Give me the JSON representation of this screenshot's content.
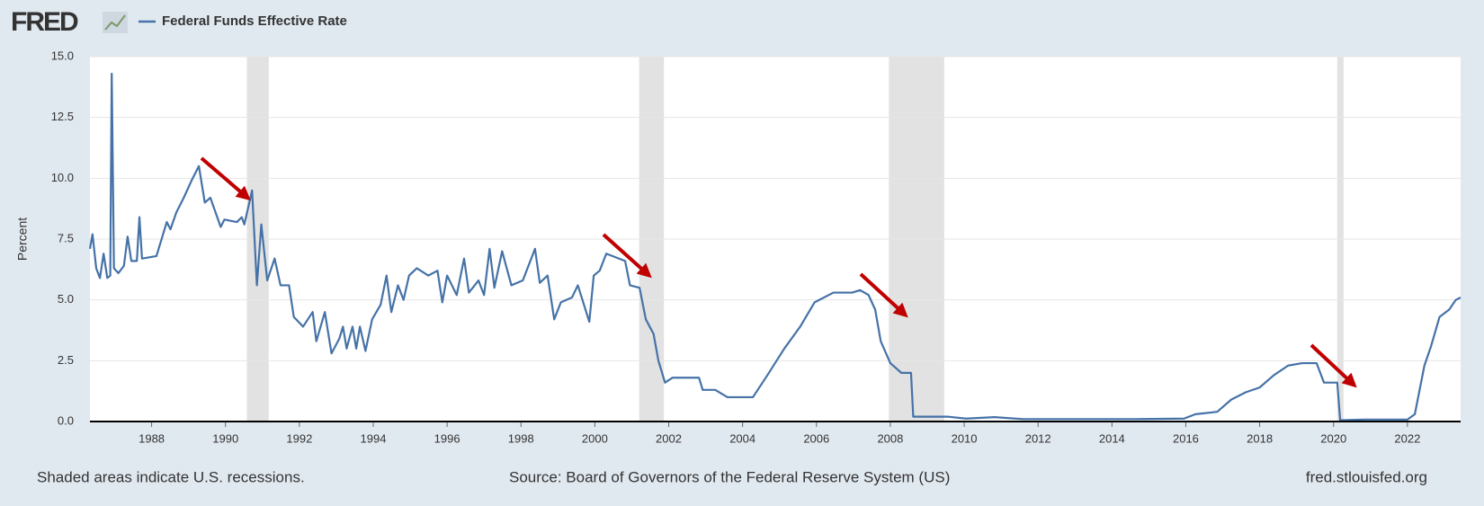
{
  "chart_data": {
    "type": "line",
    "logo": "FRED",
    "y_label": "Percent",
    "recession_note": "Shaded areas indicate U.S. recessions.",
    "source": "Source: Board of Governors of the Federal Reserve System (US)",
    "site": "fred.stlouisfed.org",
    "xlim": [
      1986.33,
      2023.44
    ],
    "ylim": [
      0,
      15
    ],
    "xticks": [
      1988,
      1990,
      1992,
      1994,
      1996,
      1998,
      2000,
      2002,
      2004,
      2006,
      2008,
      2010,
      2012,
      2014,
      2016,
      2018,
      2020,
      2022
    ],
    "yticks": [
      {
        "value": 0,
        "label": "0.0"
      },
      {
        "value": 2.5,
        "label": "2.5"
      },
      {
        "value": 5,
        "label": "5.0"
      },
      {
        "value": 7.5,
        "label": "7.5"
      },
      {
        "value": 10,
        "label": "10.0"
      },
      {
        "value": 12.5,
        "label": "12.5"
      },
      {
        "value": 15,
        "label": "15.0"
      }
    ],
    "grid": true,
    "recessions": [
      [
        1990.58,
        1991.17
      ],
      [
        2001.2,
        2001.87
      ],
      [
        2007.96,
        2009.46
      ],
      [
        2020.1,
        2020.27
      ]
    ],
    "x": [
      1986.33,
      1986.4,
      1986.5,
      1986.6,
      1986.7,
      1986.8,
      1986.88,
      1986.92,
      1986.98,
      1987.1,
      1987.25,
      1987.35,
      1987.45,
      1987.6,
      1987.67,
      1987.74,
      1988.13,
      1988.41,
      1988.51,
      1988.67,
      1988.87,
      1989.08,
      1989.28,
      1989.44,
      1989.59,
      1989.87,
      1989.97,
      1990.31,
      1990.44,
      1990.51,
      1990.72,
      1990.85,
      1990.97,
      1991.13,
      1991.33,
      1991.49,
      1991.72,
      1991.85,
      1992.1,
      1992.36,
      1992.46,
      1992.69,
      1992.87,
      1993.08,
      1993.18,
      1993.28,
      1993.44,
      1993.54,
      1993.64,
      1993.79,
      1993.97,
      1994.2,
      1994.36,
      1994.49,
      1994.67,
      1994.82,
      1994.97,
      1995.18,
      1995.49,
      1995.74,
      1995.87,
      1996.0,
      1996.26,
      1996.46,
      1996.59,
      1996.85,
      1997.0,
      1997.15,
      1997.28,
      1997.49,
      1997.74,
      1998.05,
      1998.38,
      1998.51,
      1998.72,
      1998.9,
      1999.08,
      1999.38,
      1999.54,
      1999.85,
      1999.97,
      2000.13,
      2000.31,
      2000.82,
      2000.95,
      2001.21,
      2001.38,
      2001.59,
      2001.72,
      2001.9,
      2002.1,
      2002.49,
      2002.82,
      2002.92,
      2003.26,
      2003.59,
      2004.28,
      2004.67,
      2005.13,
      2005.56,
      2005.95,
      2006.46,
      2006.97,
      2007.18,
      2007.41,
      2007.59,
      2007.74,
      2008.0,
      2008.3,
      2008.56,
      2008.62,
      2009.03,
      2009.54,
      2010.05,
      2010.82,
      2011.59,
      2014.67,
      2015.95,
      2016.26,
      2016.85,
      2017.23,
      2017.62,
      2018.0,
      2018.38,
      2018.77,
      2019.15,
      2019.54,
      2019.74,
      2020.1,
      2020.18,
      2020.82,
      2022.0,
      2022.2,
      2022.46,
      2022.64,
      2022.87,
      2023.13,
      2023.31,
      2023.44
    ],
    "series": [
      {
        "name": "Federal Funds Effective Rate",
        "color": "#4572a7",
        "values": [
          7.1,
          7.7,
          6.3,
          5.9,
          6.9,
          5.9,
          6.0,
          14.3,
          6.3,
          6.1,
          6.4,
          7.6,
          6.6,
          6.6,
          8.4,
          6.7,
          6.8,
          8.2,
          7.9,
          8.6,
          9.2,
          9.9,
          10.5,
          9.0,
          9.2,
          8.0,
          8.3,
          8.2,
          8.4,
          8.1,
          9.5,
          5.6,
          8.1,
          5.8,
          6.7,
          5.6,
          5.6,
          4.3,
          3.9,
          4.5,
          3.3,
          4.5,
          2.8,
          3.4,
          3.9,
          3.0,
          3.9,
          3.0,
          3.9,
          2.9,
          4.2,
          4.8,
          6.0,
          4.5,
          5.6,
          5.0,
          6.0,
          6.3,
          6.0,
          6.2,
          4.9,
          6.0,
          5.2,
          6.7,
          5.3,
          5.8,
          5.2,
          7.1,
          5.5,
          7.0,
          5.6,
          5.8,
          7.1,
          5.7,
          6.0,
          4.2,
          4.9,
          5.1,
          5.6,
          4.1,
          6.0,
          6.2,
          6.9,
          6.6,
          5.6,
          5.5,
          4.2,
          3.6,
          2.5,
          1.6,
          1.8,
          1.8,
          1.8,
          1.3,
          1.3,
          1.0,
          1.0,
          1.9,
          3.0,
          3.9,
          4.9,
          5.3,
          5.3,
          5.4,
          5.2,
          4.6,
          3.3,
          2.4,
          2.0,
          2.0,
          0.2,
          0.2,
          0.2,
          0.12,
          0.18,
          0.1,
          0.1,
          0.12,
          0.3,
          0.4,
          0.9,
          1.2,
          1.4,
          1.9,
          2.3,
          2.4,
          2.4,
          1.6,
          1.6,
          0.05,
          0.08,
          0.08,
          0.3,
          2.3,
          3.1,
          4.3,
          4.6,
          5.0,
          5.1
        ]
      }
    ]
  }
}
